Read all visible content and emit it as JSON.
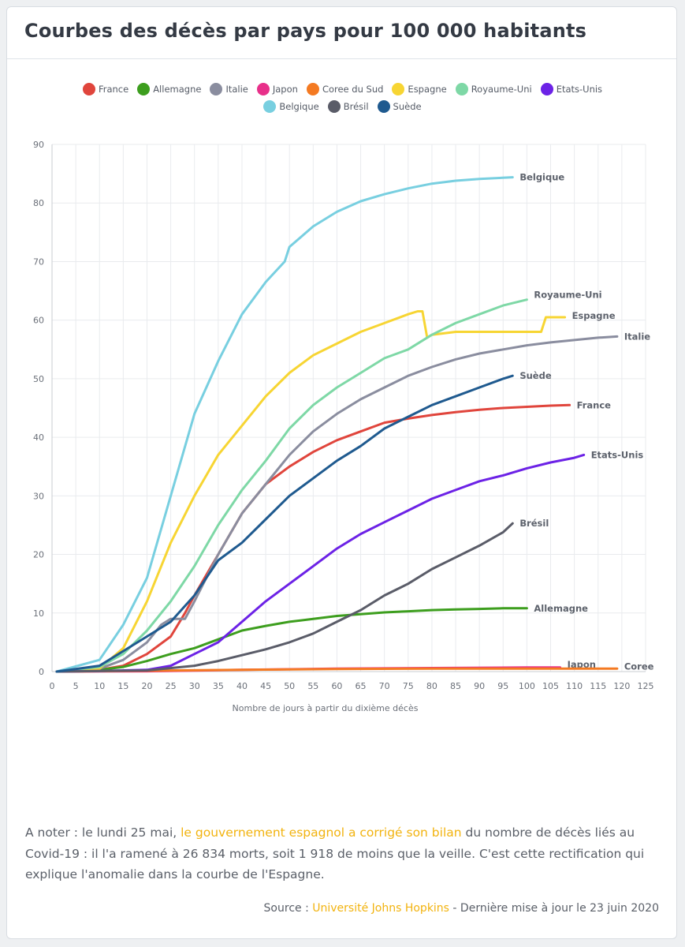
{
  "header": {
    "title": "Courbes des décès par pays pour 100 000 habitants"
  },
  "chart_data": {
    "type": "line",
    "xlabel": "Nombre de jours à partir du dixième décès",
    "ylabel": "",
    "xlim": [
      0,
      125
    ],
    "ylim": [
      0,
      90
    ],
    "xticks": [
      0,
      5,
      10,
      15,
      20,
      25,
      30,
      35,
      40,
      45,
      50,
      55,
      60,
      65,
      70,
      75,
      80,
      85,
      90,
      95,
      100,
      105,
      110,
      115,
      120,
      125
    ],
    "yticks": [
      0,
      10,
      20,
      30,
      40,
      50,
      60,
      70,
      80,
      90
    ],
    "grid": true,
    "legend_position": "top-center",
    "legend_rows": [
      [
        "France",
        "Allemagne",
        "Italie",
        "Japon",
        "Coree du Sud",
        "Espagne",
        "Royaume-Uni",
        "Etats-Unis"
      ],
      [
        "Belgique",
        "Brésil",
        "Suède"
      ]
    ],
    "series": [
      {
        "name": "France",
        "end_label": "France",
        "color": "#e0453c",
        "x": [
          1,
          10,
          15,
          20,
          25,
          28,
          30,
          35,
          40,
          45,
          50,
          55,
          60,
          65,
          70,
          75,
          80,
          85,
          90,
          95,
          100,
          105,
          109
        ],
        "y": [
          0,
          0.3,
          1,
          3,
          6,
          10,
          13,
          20,
          27,
          32,
          35,
          37.5,
          39.5,
          41,
          42.5,
          43.2,
          43.8,
          44.3,
          44.7,
          45,
          45.2,
          45.4,
          45.5
        ]
      },
      {
        "name": "Allemagne",
        "end_label": "Allemagne",
        "color": "#3d9e1e",
        "x": [
          1,
          10,
          15,
          20,
          25,
          30,
          35,
          40,
          45,
          50,
          55,
          60,
          65,
          70,
          75,
          80,
          85,
          90,
          95,
          100
        ],
        "y": [
          0,
          0.3,
          0.8,
          1.8,
          3,
          4,
          5.5,
          7,
          7.8,
          8.5,
          9,
          9.5,
          9.8,
          10.1,
          10.3,
          10.5,
          10.6,
          10.7,
          10.8,
          10.8
        ]
      },
      {
        "name": "Italie",
        "end_label": "Italie",
        "color": "#8a8d9f",
        "x": [
          1,
          10,
          15,
          20,
          23,
          25,
          28,
          30,
          35,
          40,
          45,
          50,
          55,
          60,
          65,
          70,
          75,
          80,
          85,
          90,
          95,
          100,
          105,
          110,
          115,
          119
        ],
        "y": [
          0,
          0.5,
          2,
          5,
          8,
          9,
          9,
          12,
          20,
          27,
          32,
          37,
          41,
          44,
          46.5,
          48.5,
          50.5,
          52,
          53.3,
          54.3,
          55,
          55.7,
          56.2,
          56.6,
          57,
          57.2
        ]
      },
      {
        "name": "Japon",
        "end_label": "Japon",
        "color": "#e8308a",
        "x": [
          1,
          20,
          40,
          60,
          80,
          100,
          107
        ],
        "y": [
          0,
          0.05,
          0.3,
          0.5,
          0.6,
          0.7,
          0.7
        ]
      },
      {
        "name": "Coree du Sud",
        "end_label": "Coree",
        "color": "#f47a22",
        "x": [
          1,
          20,
          40,
          60,
          80,
          100,
          119
        ],
        "y": [
          0,
          0.15,
          0.3,
          0.45,
          0.5,
          0.5,
          0.5
        ]
      },
      {
        "name": "Espagne",
        "end_label": "Espagne",
        "color": "#f7d533",
        "x": [
          1,
          10,
          15,
          20,
          25,
          30,
          35,
          40,
          45,
          50,
          55,
          60,
          65,
          70,
          75,
          77,
          78,
          79,
          80,
          85,
          90,
          95,
          100,
          103,
          104,
          108
        ],
        "y": [
          0,
          0.5,
          4,
          12,
          22,
          30,
          37,
          42,
          47,
          51,
          54,
          56,
          58,
          59.5,
          61,
          61.5,
          61.5,
          57,
          57.5,
          58,
          58,
          58,
          58,
          58,
          60.5,
          60.5
        ]
      },
      {
        "name": "Royaume-Uni",
        "end_label": "Royaume-Uni",
        "color": "#7ed8a6",
        "x": [
          1,
          10,
          15,
          20,
          25,
          30,
          35,
          40,
          45,
          50,
          55,
          60,
          65,
          70,
          75,
          80,
          85,
          90,
          95,
          100
        ],
        "y": [
          0,
          0.8,
          3,
          7,
          12,
          18,
          25,
          31,
          36,
          41.5,
          45.5,
          48.5,
          51,
          53.5,
          55,
          57.5,
          59.5,
          61,
          62.5,
          63.5
        ]
      },
      {
        "name": "Etats-Unis",
        "end_label": "Etats-Unis",
        "color": "#6c22e6",
        "x": [
          1,
          10,
          20,
          25,
          30,
          35,
          40,
          45,
          50,
          55,
          60,
          65,
          70,
          75,
          80,
          85,
          90,
          95,
          100,
          105,
          110,
          112
        ],
        "y": [
          0,
          0.1,
          0.3,
          1,
          3,
          5,
          8.5,
          12,
          15,
          18,
          21,
          23.5,
          25.5,
          27.5,
          29.5,
          31,
          32.5,
          33.5,
          34.7,
          35.7,
          36.5,
          37
        ]
      },
      {
        "name": "Belgique",
        "end_label": "Belgique",
        "color": "#78cfe0",
        "x": [
          1,
          10,
          15,
          20,
          25,
          30,
          35,
          40,
          45,
          49,
          50,
          55,
          60,
          65,
          70,
          75,
          80,
          85,
          90,
          97
        ],
        "y": [
          0,
          2,
          8,
          16,
          30,
          44,
          53,
          61,
          66.5,
          70,
          72.5,
          76,
          78.5,
          80.3,
          81.5,
          82.5,
          83.3,
          83.8,
          84.1,
          84.4
        ]
      },
      {
        "name": "Brésil",
        "end_label": "Brésil",
        "color": "#5a5c68",
        "x": [
          1,
          20,
          30,
          35,
          40,
          45,
          50,
          55,
          60,
          65,
          70,
          75,
          80,
          85,
          90,
          95,
          97
        ],
        "y": [
          0,
          0.2,
          1,
          1.8,
          2.8,
          3.8,
          5,
          6.5,
          8.5,
          10.5,
          13,
          15,
          17.5,
          19.5,
          21.5,
          23.8,
          25.3
        ]
      },
      {
        "name": "Suède",
        "end_label": "Suède",
        "color": "#1f5a8f",
        "x": [
          1,
          10,
          15,
          20,
          25,
          30,
          35,
          40,
          45,
          50,
          55,
          60,
          65,
          70,
          75,
          80,
          85,
          90,
          95,
          97
        ],
        "y": [
          0,
          1,
          3.5,
          6,
          8.5,
          13,
          19,
          22,
          26,
          30,
          33,
          36,
          38.5,
          41.5,
          43.5,
          45.5,
          47,
          48.5,
          50,
          50.5
        ]
      }
    ]
  },
  "note": {
    "prefix": "A noter : le lundi 25 mai, ",
    "link": "le gouvernement espagnol a corrigé son bilan",
    "suffix": " du nombre de décès liés au Covid-19 : il l'a ramené à 26 834 morts, soit 1 918 de moins que la veille. C'est cette rectification qui explique l'anomalie dans la courbe de l'Espagne."
  },
  "source": {
    "prefix": "Source : ",
    "link": "Université Johns Hopkins",
    "suffix": " - Dernière mise à jour le 23 juin 2020"
  }
}
